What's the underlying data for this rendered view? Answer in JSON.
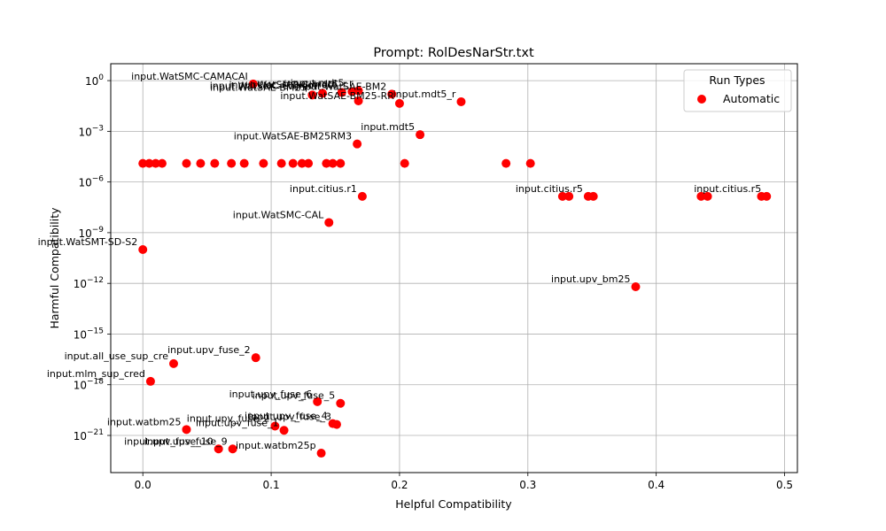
{
  "chart_data": {
    "type": "scatter",
    "title": "Prompt: RolDesNarStr.txt",
    "xlabel": "Helpful Compatibility",
    "ylabel": "Harmful Compatibility",
    "xlim": [
      -0.025,
      0.51
    ],
    "ylim_log10": [
      -23.2,
      1.0
    ],
    "yscale": "log",
    "grid": true,
    "x_ticks": [
      0.0,
      0.1,
      0.2,
      0.3,
      0.4,
      0.5
    ],
    "x_tick_labels": [
      "0.0",
      "0.1",
      "0.2",
      "0.3",
      "0.4",
      "0.5"
    ],
    "y_ticks_log10": [
      0,
      -3,
      -6,
      -9,
      -12,
      -15,
      -18,
      -21
    ],
    "y_tick_labels": [
      {
        "base": "10",
        "exp": "0"
      },
      {
        "base": "10",
        "exp": "−3"
      },
      {
        "base": "10",
        "exp": "−6"
      },
      {
        "base": "10",
        "exp": "−9"
      },
      {
        "base": "10",
        "exp": "−12"
      },
      {
        "base": "10",
        "exp": "−15"
      },
      {
        "base": "10",
        "exp": "−18"
      },
      {
        "base": "10",
        "exp": "−21"
      }
    ],
    "legend": {
      "title": "Run Types",
      "position": "top-right",
      "entries": [
        {
          "name": "Automatic",
          "color": "#ff0000"
        }
      ]
    },
    "series": [
      {
        "name": "Automatic",
        "color": "#ff0000",
        "points": [
          {
            "x": 0.0,
            "ly": -10.0,
            "label": "input.WatSMT-SD-S2"
          },
          {
            "x": 0.086,
            "ly": -0.2,
            "label": "input.WatSMC-CAMACAI"
          },
          {
            "x": 0.14,
            "ly": -0.75,
            "label": "input.WatSMC-Correct"
          },
          {
            "x": 0.155,
            "ly": -0.7,
            "label": "input.WatSMC-Correct"
          },
          {
            "x": 0.163,
            "ly": -0.65,
            "label": "input.mdt5_r"
          },
          {
            "x": 0.168,
            "ly": -0.6,
            "label": "input.mdt5_r"
          },
          {
            "x": 0.194,
            "ly": -0.8,
            "label": "input.WatSAE-BM2"
          },
          {
            "x": 0.2,
            "ly": -1.35,
            "label": "input.WatSAE-BM25-RR"
          },
          {
            "x": 0.168,
            "ly": -1.2,
            "label": ""
          },
          {
            "x": 0.132,
            "ly": -0.85,
            "label": "input.WatSAE-BM25"
          },
          {
            "x": 0.248,
            "ly": -1.25,
            "label": "input.mdt5_r"
          },
          {
            "x": 0.216,
            "ly": -3.2,
            "label": "input.mdt5"
          },
          {
            "x": 0.167,
            "ly": -3.75,
            "label": "input.WatSAE-BM25RM3"
          },
          {
            "x": 0.0,
            "ly": -4.9,
            "label": ""
          },
          {
            "x": 0.005,
            "ly": -4.9,
            "label": ""
          },
          {
            "x": 0.01,
            "ly": -4.9,
            "label": ""
          },
          {
            "x": 0.015,
            "ly": -4.9,
            "label": ""
          },
          {
            "x": 0.034,
            "ly": -4.9,
            "label": ""
          },
          {
            "x": 0.045,
            "ly": -4.9,
            "label": ""
          },
          {
            "x": 0.056,
            "ly": -4.9,
            "label": ""
          },
          {
            "x": 0.069,
            "ly": -4.9,
            "label": ""
          },
          {
            "x": 0.079,
            "ly": -4.9,
            "label": ""
          },
          {
            "x": 0.094,
            "ly": -4.9,
            "label": ""
          },
          {
            "x": 0.108,
            "ly": -4.9,
            "label": ""
          },
          {
            "x": 0.117,
            "ly": -4.9,
            "label": ""
          },
          {
            "x": 0.124,
            "ly": -4.9,
            "label": ""
          },
          {
            "x": 0.129,
            "ly": -4.9,
            "label": ""
          },
          {
            "x": 0.143,
            "ly": -4.9,
            "label": ""
          },
          {
            "x": 0.148,
            "ly": -4.9,
            "label": ""
          },
          {
            "x": 0.154,
            "ly": -4.9,
            "label": ""
          },
          {
            "x": 0.204,
            "ly": -4.9,
            "label": ""
          },
          {
            "x": 0.283,
            "ly": -4.9,
            "label": ""
          },
          {
            "x": 0.302,
            "ly": -4.9,
            "label": ""
          },
          {
            "x": 0.171,
            "ly": -6.85,
            "label": "input.citius.r1"
          },
          {
            "x": 0.327,
            "ly": -6.85,
            "label": ""
          },
          {
            "x": 0.332,
            "ly": -6.85,
            "label": ""
          },
          {
            "x": 0.347,
            "ly": -6.85,
            "label": "input.citius.r5"
          },
          {
            "x": 0.351,
            "ly": -6.85,
            "label": ""
          },
          {
            "x": 0.435,
            "ly": -6.85,
            "label": ""
          },
          {
            "x": 0.44,
            "ly": -6.85,
            "label": ""
          },
          {
            "x": 0.482,
            "ly": -6.85,
            "label": ""
          },
          {
            "x": 0.486,
            "ly": -6.85,
            "label": "input.citius.r5"
          },
          {
            "x": 0.145,
            "ly": -8.4,
            "label": "input.WatSMC-CAL"
          },
          {
            "x": 0.384,
            "ly": -12.2,
            "label": "input.upv_bm25"
          },
          {
            "x": 0.088,
            "ly": -16.4,
            "label": "input.upv_fuse_2"
          },
          {
            "x": 0.024,
            "ly": -16.75,
            "label": "input.all_use_sup_cre"
          },
          {
            "x": 0.006,
            "ly": -17.8,
            "label": "input.mlm_sup_cred"
          },
          {
            "x": 0.136,
            "ly": -19.0,
            "label": "input.upv_fuse_6"
          },
          {
            "x": 0.154,
            "ly": -19.1,
            "label": "input.upv_fuse_5"
          },
          {
            "x": 0.148,
            "ly": -20.3,
            "label": "input.upv_fuse_4"
          },
          {
            "x": 0.151,
            "ly": -20.35,
            "label": "input.upv_fuse_3"
          },
          {
            "x": 0.103,
            "ly": -20.45,
            "label": "input.upv_fuse_2"
          },
          {
            "x": 0.11,
            "ly": -20.7,
            "label": "input.upv_fuse_1"
          },
          {
            "x": 0.034,
            "ly": -20.65,
            "label": "input.watbm25"
          },
          {
            "x": 0.059,
            "ly": -21.8,
            "label": "input.upv_fuse_10"
          },
          {
            "x": 0.07,
            "ly": -21.8,
            "label": "input.upv_fuse_9"
          },
          {
            "x": 0.139,
            "ly": -22.05,
            "label": "input.watbm25p"
          }
        ]
      }
    ]
  }
}
